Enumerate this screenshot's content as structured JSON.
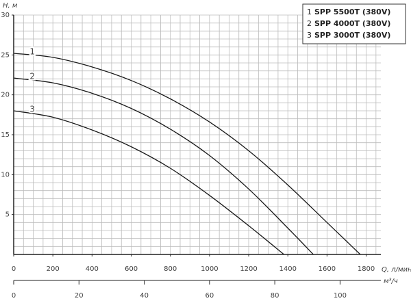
{
  "chart_data": {
    "type": "line",
    "y_label": "H, м",
    "x_label": "Q, л/мин",
    "x2_label": "м³/ч",
    "xlim": [
      0,
      1875
    ],
    "xticks": [
      0,
      200,
      400,
      600,
      800,
      1000,
      1200,
      1400,
      1600,
      1800
    ],
    "ylim": [
      0,
      30
    ],
    "yticks": [
      5,
      10,
      15,
      20,
      25,
      30
    ],
    "x2lim": [
      0,
      112.5
    ],
    "x2ticks": [
      0,
      20,
      40,
      60,
      80,
      100
    ],
    "grid": true,
    "series": [
      {
        "label": "1",
        "name": "SPP 5500T (380V)",
        "color": "#1a1a1a",
        "x": [
          0,
          200,
          400,
          600,
          800,
          1000,
          1200,
          1400,
          1600,
          1770
        ],
        "values": [
          25.2,
          24.7,
          23.5,
          21.8,
          19.5,
          16.6,
          13,
          8.7,
          4,
          0
        ]
      },
      {
        "label": "2",
        "name": "SPP 4000T (380V)",
        "color": "#1a1a1a",
        "x": [
          0,
          200,
          400,
          600,
          800,
          1000,
          1200,
          1400,
          1530
        ],
        "values": [
          22.1,
          21.5,
          20.2,
          18.3,
          15.7,
          12.4,
          8.2,
          3.3,
          0
        ]
      },
      {
        "label": "3",
        "name": "SPP 3000T (380V)",
        "color": "#1a1a1a",
        "x": [
          0,
          200,
          400,
          600,
          800,
          1000,
          1200,
          1380
        ],
        "values": [
          18,
          17.2,
          15.6,
          13.5,
          10.8,
          7.4,
          3.6,
          0
        ]
      }
    ]
  }
}
